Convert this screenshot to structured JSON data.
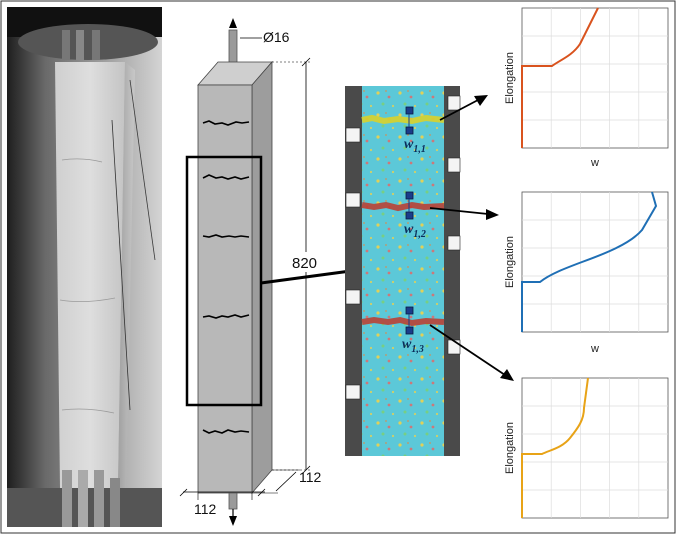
{
  "specimen": {
    "bar_diameter": "Ø16",
    "height": "820",
    "width": "112",
    "depth": "112"
  },
  "crack_labels": [
    {
      "base": "w",
      "subscript": "1,1"
    },
    {
      "base": "w",
      "subscript": "1,2"
    },
    {
      "base": "w",
      "subscript": "1,3"
    }
  ],
  "plots": [
    {
      "ylabel": "Elongation",
      "xlabel": "w",
      "color": "#d9531e"
    },
    {
      "ylabel": "Elongation",
      "xlabel": "w",
      "color": "#1f6fb5"
    },
    {
      "ylabel": "Elongation",
      "xlabel": "",
      "color": "#e8a317"
    }
  ],
  "colors": {
    "frame": "#000000",
    "dic_field": "#5cc8d8",
    "crack": "#c0392b",
    "prism": "#b8b8b8"
  }
}
